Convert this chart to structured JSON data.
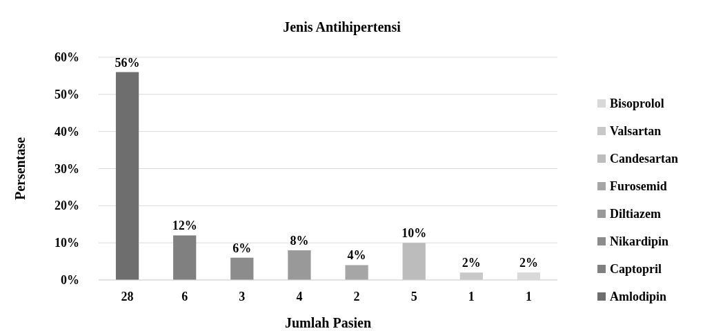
{
  "chart_data": {
    "type": "bar",
    "title": "Jenis Antihipertensi",
    "xlabel": "Jumlah Pasien",
    "ylabel": "Persentase",
    "categories": [
      "28",
      "6",
      "3",
      "4",
      "2",
      "5",
      "1",
      "1"
    ],
    "series": [
      {
        "name": "Amlodipin",
        "color": "#6e6e6e",
        "values": [
          56,
          null,
          null,
          null,
          null,
          null,
          null,
          null
        ],
        "value_labels": [
          "56%",
          null,
          null,
          null,
          null,
          null,
          null,
          null
        ]
      },
      {
        "name": "Captopril",
        "color": "#808080",
        "values": [
          null,
          12,
          null,
          null,
          null,
          null,
          null,
          null
        ],
        "value_labels": [
          null,
          "12%",
          null,
          null,
          null,
          null,
          null,
          null
        ]
      },
      {
        "name": "Nikardipin",
        "color": "#8c8c8c",
        "values": [
          null,
          null,
          6,
          null,
          null,
          null,
          null,
          null
        ],
        "value_labels": [
          null,
          null,
          "6%",
          null,
          null,
          null,
          null,
          null
        ]
      },
      {
        "name": "Diltiazem",
        "color": "#999999",
        "values": [
          null,
          null,
          null,
          8,
          null,
          null,
          null,
          null
        ],
        "value_labels": [
          null,
          null,
          null,
          "8%",
          null,
          null,
          null,
          null
        ]
      },
      {
        "name": "Furosemid",
        "color": "#a6a6a6",
        "values": [
          null,
          null,
          null,
          null,
          4,
          null,
          null,
          null
        ],
        "value_labels": [
          null,
          null,
          null,
          null,
          "4%",
          null,
          null,
          null
        ]
      },
      {
        "name": "Candesartan",
        "color": "#bcbcbc",
        "values": [
          null,
          null,
          null,
          null,
          null,
          10,
          null,
          null
        ],
        "value_labels": [
          null,
          null,
          null,
          null,
          null,
          "10%",
          null,
          null
        ]
      },
      {
        "name": "Valsartan",
        "color": "#c8c8c8",
        "values": [
          null,
          null,
          null,
          null,
          null,
          null,
          2,
          null
        ],
        "value_labels": [
          null,
          null,
          null,
          null,
          null,
          null,
          "2%",
          null
        ]
      },
      {
        "name": "Bisoprolol",
        "color": "#d9d9d9",
        "values": [
          null,
          null,
          null,
          null,
          null,
          null,
          null,
          2
        ],
        "value_labels": [
          null,
          null,
          null,
          null,
          null,
          null,
          null,
          "2%"
        ]
      }
    ],
    "ylim": [
      0,
      60
    ],
    "yticks": [
      {
        "value": 0,
        "label": "0%"
      },
      {
        "value": 10,
        "label": "10%"
      },
      {
        "value": 20,
        "label": "20%"
      },
      {
        "value": 30,
        "label": "30%"
      },
      {
        "value": 40,
        "label": "40%"
      },
      {
        "value": 50,
        "label": "50%"
      },
      {
        "value": 60,
        "label": "60%"
      }
    ],
    "grid": "y",
    "legend": "right"
  }
}
